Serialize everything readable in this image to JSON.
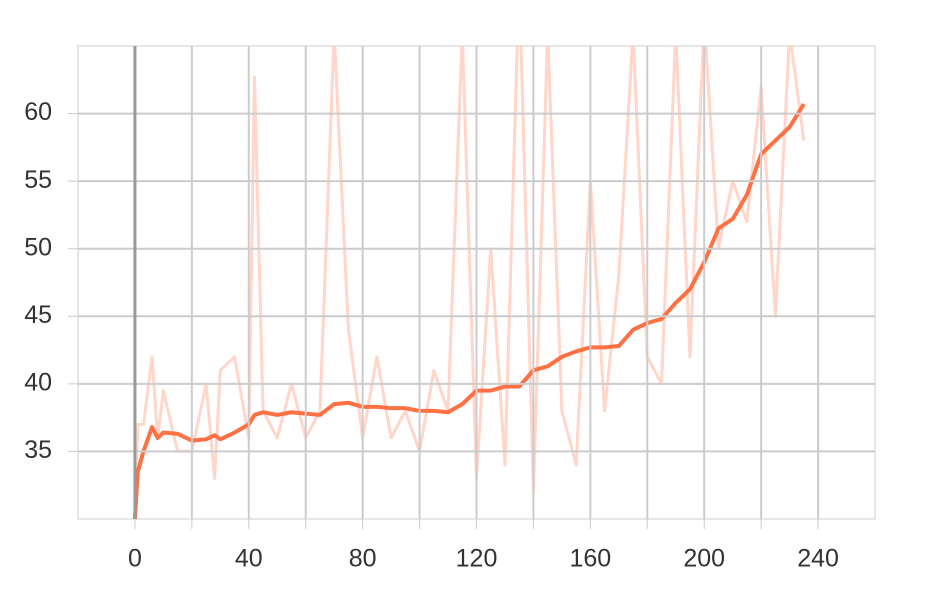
{
  "chart_data": {
    "type": "line",
    "x": [
      0,
      1,
      3,
      6,
      8,
      10,
      15,
      20,
      25,
      28,
      30,
      35,
      40,
      42,
      45,
      50,
      55,
      60,
      65,
      70,
      75,
      80,
      85,
      90,
      95,
      100,
      105,
      110,
      115,
      120,
      125,
      130,
      135,
      140,
      145,
      150,
      155,
      160,
      165,
      170,
      175,
      180,
      185,
      190,
      195,
      200,
      205,
      210,
      215,
      220,
      225,
      230,
      235
    ],
    "series": [
      {
        "color": "#ffccbc",
        "values": [
          30,
          37,
          37,
          42,
          36,
          39.5,
          35,
          35,
          40,
          33,
          41,
          42,
          36,
          62.7,
          38,
          36,
          40,
          36,
          38,
          66,
          44,
          36,
          42,
          36,
          38,
          35,
          41,
          38,
          66,
          33,
          50,
          34,
          70,
          32,
          66,
          38,
          34,
          55,
          38,
          48,
          66,
          42,
          40,
          66,
          42,
          67,
          50,
          55,
          52,
          62,
          45,
          66,
          58
        ]
      },
      {
        "color": "#ff7043",
        "values": [
          30,
          33.5,
          35,
          36.8,
          36,
          36.4,
          36.3,
          35.8,
          35.9,
          36.2,
          35.9,
          36.4,
          37,
          37.7,
          37.9,
          37.7,
          37.9,
          37.8,
          37.7,
          38.5,
          38.6,
          38.3,
          38.3,
          38.2,
          38.2,
          38,
          38,
          37.9,
          38.5,
          39.5,
          39.5,
          39.8,
          39.8,
          41,
          41.3,
          42,
          42.4,
          42.7,
          42.7,
          42.8,
          44,
          44.5,
          44.8,
          46,
          47,
          49,
          51.5,
          52.2,
          54,
          57,
          58,
          59,
          60.7
        ]
      }
    ],
    "xlim": [
      -20,
      260
    ],
    "xticks": [
      0,
      40,
      80,
      120,
      160,
      200,
      240
    ],
    "xgrid": [
      20,
      60,
      100,
      140,
      180,
      220
    ],
    "ylim": [
      30,
      65
    ],
    "yticks": [
      35,
      40,
      45,
      50,
      55,
      60
    ],
    "grid": true
  }
}
